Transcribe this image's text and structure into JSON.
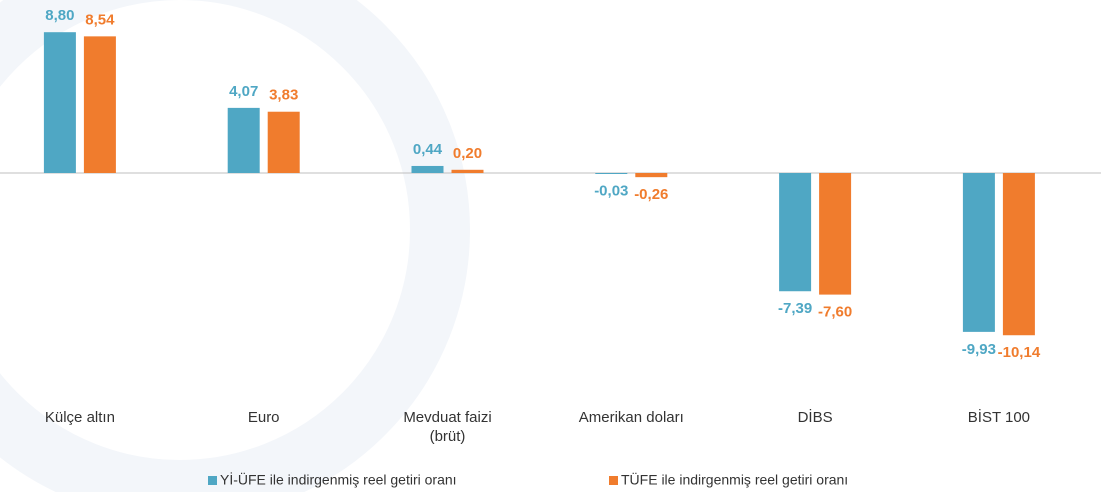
{
  "chart_data": {
    "type": "bar",
    "categories": [
      "Külçe altın",
      "Euro",
      [
        "Mevduat faizi",
        "(brüt)"
      ],
      "Amerikan doları",
      "DİBS",
      "BİST 100"
    ],
    "series": [
      {
        "name": "Yİ-ÜFE ile indirgenmiş reel getiri oranı",
        "color": "#4fa7c4",
        "values": [
          8.8,
          4.07,
          0.44,
          -0.03,
          -7.39,
          -9.93
        ],
        "value_labels": [
          "8,80",
          "4,07",
          "0,44",
          "-0,03",
          "-7,39",
          "-9,93"
        ]
      },
      {
        "name": "TÜFE ile indirgenmiş reel getiri oranı",
        "color": "#f07c2d",
        "values": [
          8.54,
          3.83,
          0.2,
          -0.26,
          -7.6,
          -10.14
        ],
        "value_labels": [
          "8,54",
          "3,83",
          "0,20",
          "-0,26",
          "-7,60",
          "-10,14"
        ]
      }
    ],
    "legend": "bottom"
  }
}
